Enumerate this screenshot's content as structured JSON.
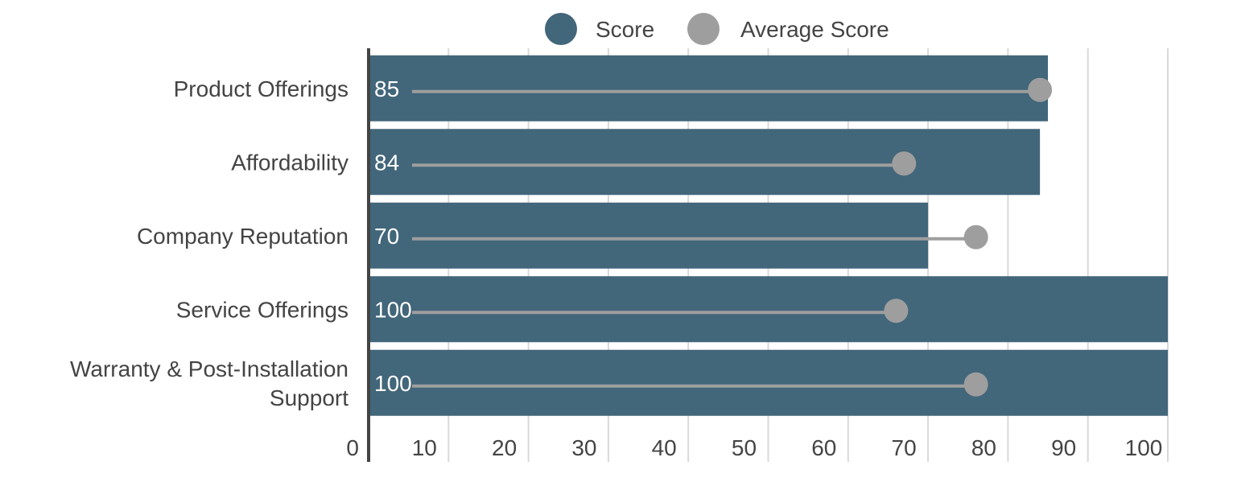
{
  "colors": {
    "score": "#42667a",
    "average": "#9e9e9e",
    "grid": "#d9d9d9",
    "axis": "#444444",
    "text": "#444444",
    "bar_label": "#ffffff"
  },
  "chart_data": {
    "type": "bar",
    "orientation": "horizontal",
    "categories": [
      [
        "Product Offerings"
      ],
      [
        "Affordability"
      ],
      [
        "Company Reputation"
      ],
      [
        "Service Offerings"
      ],
      [
        "Warranty & Post-Installation",
        "Support"
      ]
    ],
    "series": [
      {
        "name": "Score",
        "values": [
          85,
          84,
          70,
          100,
          100
        ],
        "labels": [
          "85",
          "84",
          "70",
          "100",
          "100"
        ]
      },
      {
        "name": "Average Score",
        "values": [
          84,
          67,
          76,
          66,
          76
        ]
      }
    ],
    "xlim": [
      0,
      100
    ],
    "xticks": [
      "0",
      "10",
      "20",
      "30",
      "40",
      "50",
      "60",
      "70",
      "80",
      "90",
      "100"
    ],
    "grid": true,
    "legend": "top-center"
  }
}
